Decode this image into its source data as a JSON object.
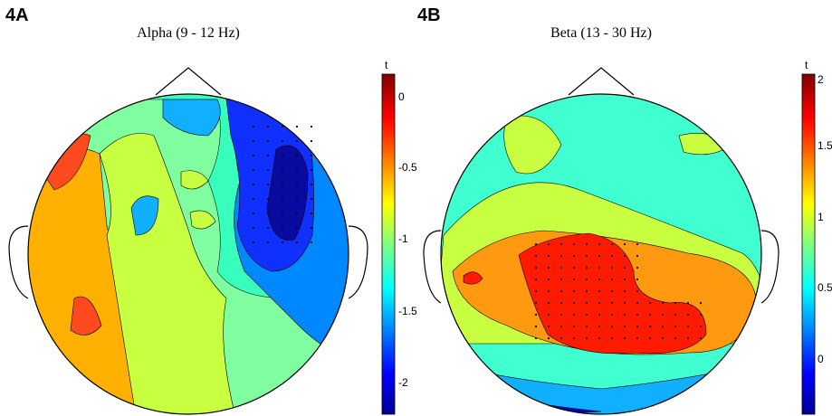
{
  "panels": [
    {
      "label": "4A",
      "title": "Alpha (9 - 12 Hz)",
      "colorbar": {
        "label": "t",
        "min": -2.3,
        "max": 0.2,
        "ticks": [
          "0",
          "-0.5",
          "-1",
          "-1.5",
          "-2"
        ]
      }
    },
    {
      "label": "4B",
      "title": "Beta (13 - 30 Hz)",
      "colorbar": {
        "label": "t",
        "min": -0.45,
        "max": 2.0,
        "ticks": [
          "2",
          "1.5",
          "1",
          "0.5",
          "0"
        ]
      }
    }
  ],
  "colormap": "jet",
  "colors": [
    "#00008f",
    "#0000ff",
    "#0080ff",
    "#00e0ff",
    "#80ff80",
    "#ffff00",
    "#ff8000",
    "#ff0000",
    "#800000"
  ]
}
